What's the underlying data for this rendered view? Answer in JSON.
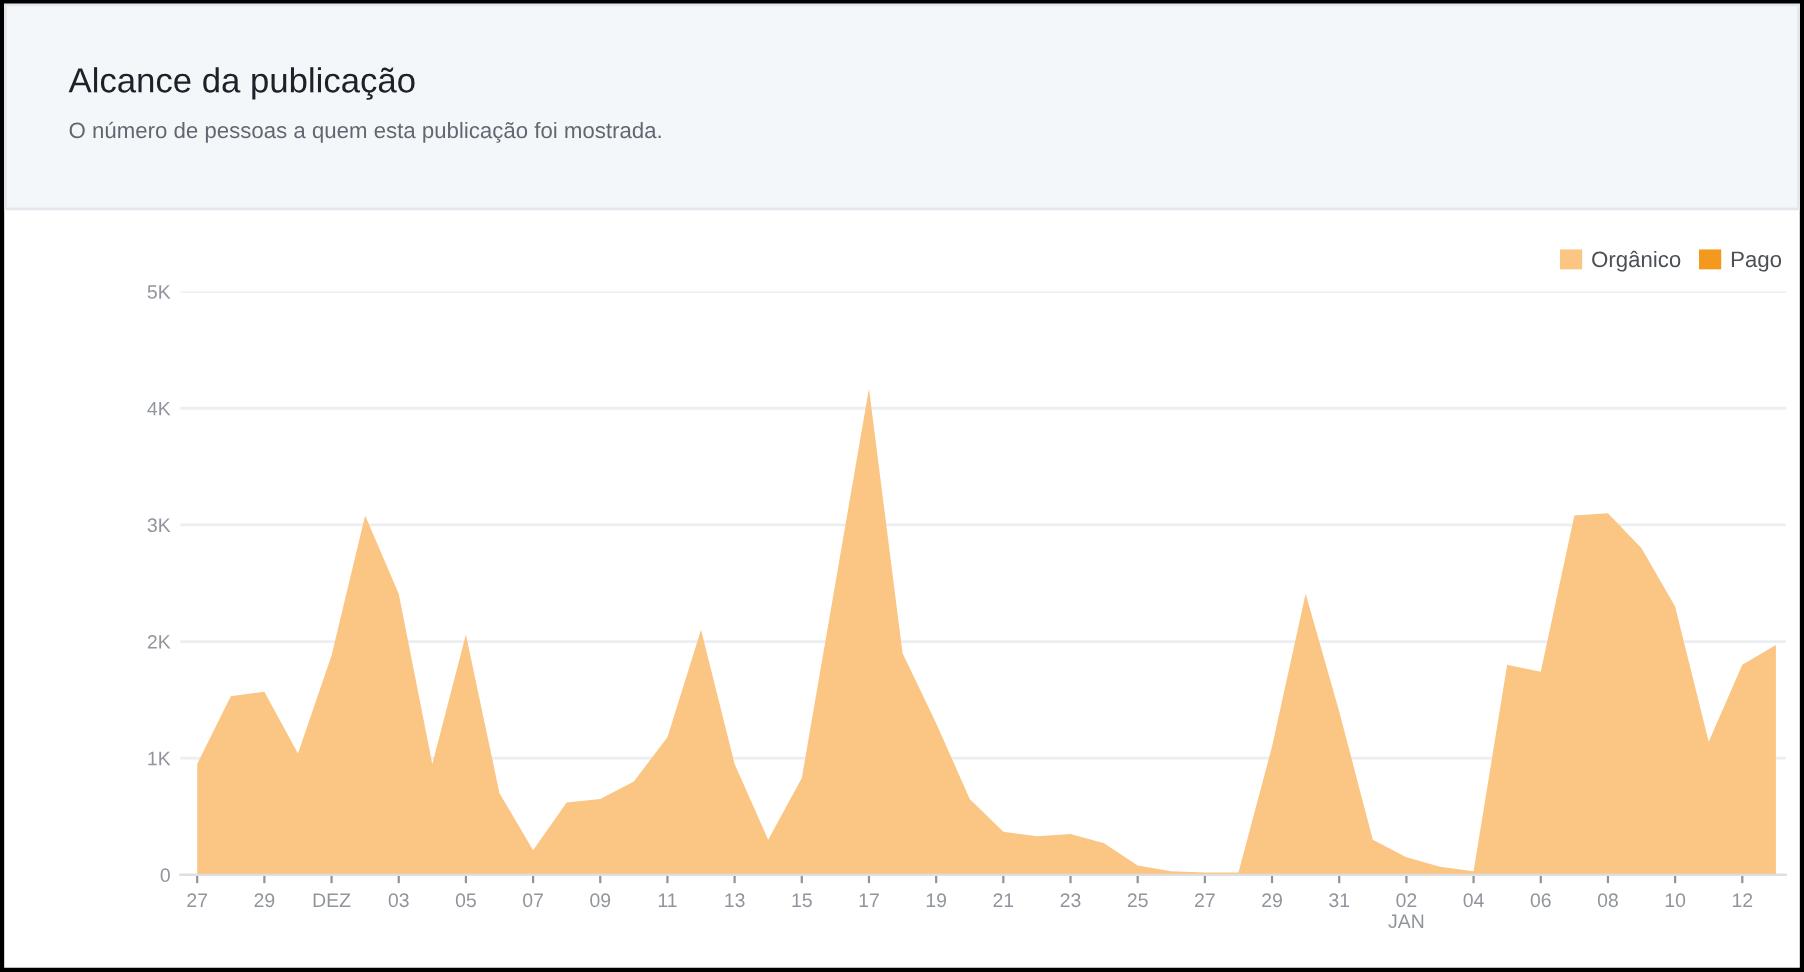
{
  "chart_data": {
    "type": "area",
    "title": "Alcance da publicação",
    "subtitle": "O número de pessoas a quem esta publicação foi mostrada.",
    "categories": [
      "27",
      null,
      "29",
      null,
      "DEZ",
      null,
      "03",
      null,
      "05",
      null,
      "07",
      null,
      "09",
      null,
      "11",
      null,
      "13",
      null,
      "15",
      null,
      "17",
      null,
      "19",
      null,
      "21",
      null,
      "23",
      null,
      "25",
      null,
      "27",
      null,
      "29",
      null,
      "31",
      null,
      "02\nJAN",
      null,
      "04",
      null,
      "06",
      null,
      "08",
      null,
      "10",
      null,
      "12",
      null
    ],
    "series": [
      {
        "name": "Orgânico",
        "color": "#fbc584",
        "values": [
          950,
          1530,
          1570,
          1040,
          1880,
          3080,
          2410,
          950,
          2060,
          700,
          210,
          620,
          650,
          800,
          1180,
          2100,
          950,
          300,
          830,
          2500,
          4170,
          1900,
          1300,
          650,
          370,
          330,
          350,
          270,
          80,
          30,
          20,
          20,
          1100,
          2410,
          1400,
          300,
          150,
          70,
          30,
          1800,
          1740,
          3080,
          3100,
          2800,
          2300,
          1140,
          1800,
          1970
        ]
      },
      {
        "name": "Pago",
        "color": "#f39a1e",
        "values": [
          null,
          null,
          null,
          null,
          null,
          null,
          null,
          null,
          null,
          null,
          null,
          null,
          null,
          null,
          null,
          null,
          null,
          null,
          null,
          null,
          null,
          null,
          null,
          null,
          null,
          null,
          null,
          null,
          null,
          null,
          null,
          null,
          null,
          null,
          null,
          null,
          null,
          null,
          null,
          null,
          null,
          null,
          null,
          null,
          null,
          null,
          null,
          null
        ]
      }
    ],
    "ylim": [
      0,
      5000
    ],
    "yticks": [
      0,
      {
        "value": 1000,
        "label": "1K"
      },
      {
        "value": 2000,
        "label": "2K"
      },
      {
        "value": 3000,
        "label": "3K"
      },
      {
        "value": 4000,
        "label": "4K"
      },
      {
        "value": 5000,
        "label": "5K"
      }
    ],
    "grid": "y",
    "legend": "top right"
  }
}
